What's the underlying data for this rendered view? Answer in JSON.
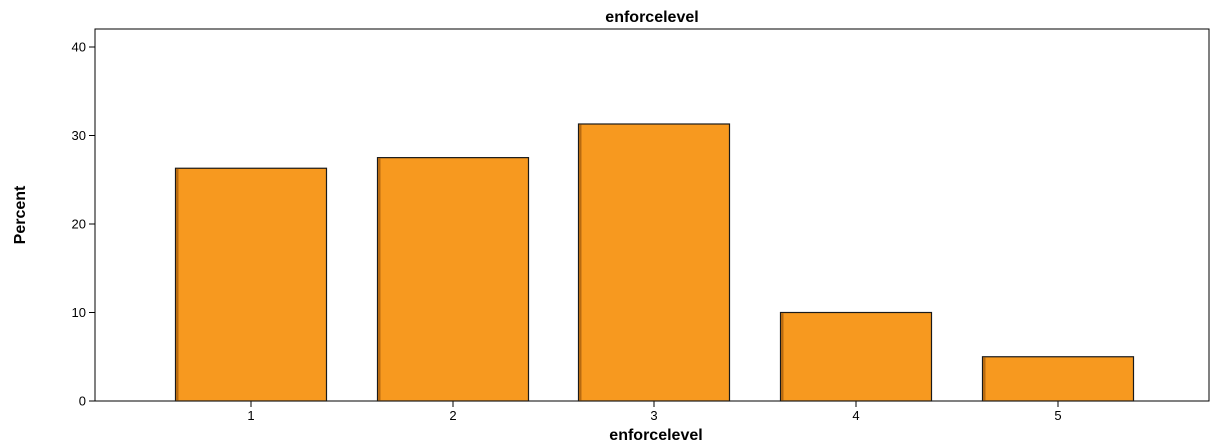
{
  "chart_data": {
    "type": "bar",
    "title": "enforcelevel",
    "xlabel": "enforcelevel",
    "ylabel": "Percent",
    "categories": [
      "1",
      "2",
      "3",
      "4",
      "5"
    ],
    "values": [
      26.3,
      27.5,
      31.3,
      10.0,
      5.0
    ],
    "ylim": [
      0,
      40
    ],
    "yticks": [
      "0",
      "10",
      "20",
      "30",
      "40"
    ],
    "grid": false,
    "legend": "none",
    "colors": {
      "bar_fill": "#f7991f",
      "bar_stroke": "#1a1a1a",
      "bar_shadow": "#b86a10",
      "axis": "#000000",
      "frame": "#000000",
      "background": "#ffffff"
    }
  }
}
